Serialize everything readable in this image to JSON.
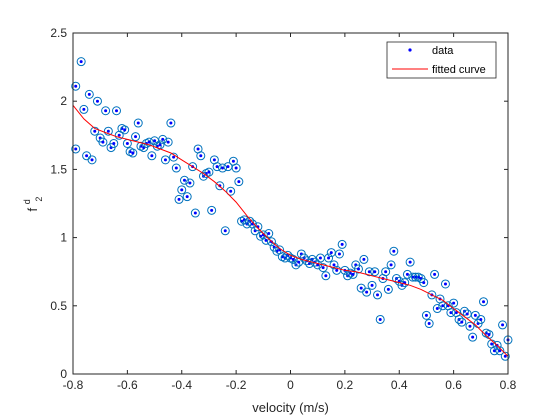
{
  "chart_data": {
    "type": "scatter",
    "title": "",
    "xlabel": "velocity (m/s)",
    "ylabel": "f",
    "ylabel_superscript": "d",
    "ylabel_subscript": "2",
    "xlim": [
      -0.8,
      0.8
    ],
    "ylim": [
      0,
      2.5
    ],
    "xticks": [
      -0.8,
      -0.6,
      -0.4,
      -0.2,
      0,
      0.2,
      0.4,
      0.6,
      0.8
    ],
    "xtick_labels": [
      "-0.8",
      "-0.6",
      "-0.4",
      "-0.2",
      "0",
      "0.2",
      "0.4",
      "0.6",
      "0.8"
    ],
    "yticks": [
      0,
      0.5,
      1,
      1.5,
      2,
      2.5
    ],
    "ytick_labels": [
      "0",
      "0.5",
      "1",
      "1.5",
      "2",
      "2.5"
    ],
    "grid": false,
    "legend_position": "top-right",
    "series": [
      {
        "name": "data",
        "kind": "scatter",
        "color": "#0000ff",
        "ring_color": "#0072bd",
        "points": [
          [
            -0.79,
            2.11
          ],
          [
            -0.77,
            2.29
          ],
          [
            -0.76,
            1.94
          ],
          [
            -0.79,
            1.65
          ],
          [
            -0.75,
            1.6
          ],
          [
            -0.74,
            2.05
          ],
          [
            -0.73,
            1.57
          ],
          [
            -0.72,
            1.78
          ],
          [
            -0.71,
            2.0
          ],
          [
            -0.7,
            1.73
          ],
          [
            -0.69,
            1.7
          ],
          [
            -0.68,
            1.93
          ],
          [
            -0.67,
            1.78
          ],
          [
            -0.66,
            1.66
          ],
          [
            -0.65,
            1.69
          ],
          [
            -0.64,
            1.93
          ],
          [
            -0.63,
            1.75
          ],
          [
            -0.62,
            1.8
          ],
          [
            -0.61,
            1.79
          ],
          [
            -0.6,
            1.69
          ],
          [
            -0.59,
            1.63
          ],
          [
            -0.58,
            1.62
          ],
          [
            -0.57,
            1.74
          ],
          [
            -0.56,
            1.84
          ],
          [
            -0.55,
            1.67
          ],
          [
            -0.54,
            1.66
          ],
          [
            -0.53,
            1.69
          ],
          [
            -0.52,
            1.7
          ],
          [
            -0.51,
            1.6
          ],
          [
            -0.5,
            1.71
          ],
          [
            -0.49,
            1.67
          ],
          [
            -0.48,
            1.68
          ],
          [
            -0.47,
            1.72
          ],
          [
            -0.46,
            1.57
          ],
          [
            -0.45,
            1.7
          ],
          [
            -0.44,
            1.84
          ],
          [
            -0.43,
            1.59
          ],
          [
            -0.42,
            1.51
          ],
          [
            -0.41,
            1.28
          ],
          [
            -0.4,
            1.35
          ],
          [
            -0.39,
            1.42
          ],
          [
            -0.38,
            1.3
          ],
          [
            -0.37,
            1.4
          ],
          [
            -0.36,
            1.52
          ],
          [
            -0.35,
            1.18
          ],
          [
            -0.34,
            1.65
          ],
          [
            -0.33,
            1.6
          ],
          [
            -0.32,
            1.45
          ],
          [
            -0.31,
            1.47
          ],
          [
            -0.3,
            1.48
          ],
          [
            -0.29,
            1.2
          ],
          [
            -0.28,
            1.57
          ],
          [
            -0.27,
            1.52
          ],
          [
            -0.26,
            1.38
          ],
          [
            -0.25,
            1.51
          ],
          [
            -0.24,
            1.05
          ],
          [
            -0.23,
            1.52
          ],
          [
            -0.22,
            1.34
          ],
          [
            -0.21,
            1.56
          ],
          [
            -0.2,
            1.51
          ],
          [
            -0.19,
            1.41
          ],
          [
            -0.18,
            1.12
          ],
          [
            -0.17,
            1.13
          ],
          [
            -0.16,
            1.1
          ],
          [
            -0.15,
            1.12
          ],
          [
            -0.14,
            1.1
          ],
          [
            -0.13,
            1.05
          ],
          [
            -0.12,
            1.08
          ],
          [
            -0.11,
            1.01
          ],
          [
            -0.1,
            1.02
          ],
          [
            -0.09,
            0.98
          ],
          [
            -0.08,
            1.03
          ],
          [
            -0.07,
            0.97
          ],
          [
            -0.06,
            0.93
          ],
          [
            -0.05,
            0.9
          ],
          [
            -0.04,
            0.91
          ],
          [
            -0.03,
            0.86
          ],
          [
            -0.02,
            0.85
          ],
          [
            -0.01,
            0.87
          ],
          [
            0.0,
            0.85
          ],
          [
            0.01,
            0.84
          ],
          [
            0.02,
            0.8
          ],
          [
            0.03,
            0.82
          ],
          [
            0.04,
            0.88
          ],
          [
            0.05,
            0.85
          ],
          [
            0.06,
            0.83
          ],
          [
            0.07,
            0.81
          ],
          [
            0.08,
            0.84
          ],
          [
            0.09,
            0.82
          ],
          [
            0.1,
            0.8
          ],
          [
            0.11,
            0.85
          ],
          [
            0.12,
            0.78
          ],
          [
            0.13,
            0.72
          ],
          [
            0.14,
            0.85
          ],
          [
            0.15,
            0.89
          ],
          [
            0.16,
            0.8
          ],
          [
            0.17,
            0.76
          ],
          [
            0.18,
            0.88
          ],
          [
            0.19,
            0.95
          ],
          [
            0.2,
            0.76
          ],
          [
            0.21,
            0.72
          ],
          [
            0.22,
            0.74
          ],
          [
            0.23,
            0.73
          ],
          [
            0.24,
            0.8
          ],
          [
            0.25,
            0.77
          ],
          [
            0.26,
            0.63
          ],
          [
            0.27,
            0.84
          ],
          [
            0.28,
            0.6
          ],
          [
            0.29,
            0.75
          ],
          [
            0.3,
            0.65
          ],
          [
            0.31,
            0.75
          ],
          [
            0.32,
            0.58
          ],
          [
            0.33,
            0.4
          ],
          [
            0.34,
            0.7
          ],
          [
            0.35,
            0.75
          ],
          [
            0.36,
            0.62
          ],
          [
            0.37,
            0.8
          ],
          [
            0.38,
            0.9
          ],
          [
            0.39,
            0.7
          ],
          [
            0.4,
            0.68
          ],
          [
            0.41,
            0.65
          ],
          [
            0.42,
            0.67
          ],
          [
            0.43,
            0.73
          ],
          [
            0.44,
            0.82
          ],
          [
            0.45,
            0.71
          ],
          [
            0.46,
            0.71
          ],
          [
            0.47,
            0.71
          ],
          [
            0.48,
            0.7
          ],
          [
            0.49,
            0.67
          ],
          [
            0.5,
            0.43
          ],
          [
            0.51,
            0.37
          ],
          [
            0.52,
            0.58
          ],
          [
            0.53,
            0.73
          ],
          [
            0.54,
            0.48
          ],
          [
            0.55,
            0.55
          ],
          [
            0.56,
            0.5
          ],
          [
            0.57,
            0.66
          ],
          [
            0.58,
            0.5
          ],
          [
            0.59,
            0.45
          ],
          [
            0.6,
            0.52
          ],
          [
            0.61,
            0.45
          ],
          [
            0.62,
            0.4
          ],
          [
            0.63,
            0.38
          ],
          [
            0.64,
            0.46
          ],
          [
            0.65,
            0.44
          ],
          [
            0.66,
            0.35
          ],
          [
            0.67,
            0.27
          ],
          [
            0.68,
            0.43
          ],
          [
            0.69,
            0.37
          ],
          [
            0.7,
            0.4
          ],
          [
            0.71,
            0.53
          ],
          [
            0.72,
            0.3
          ],
          [
            0.73,
            0.29
          ],
          [
            0.74,
            0.22
          ],
          [
            0.75,
            0.17
          ],
          [
            0.76,
            0.21
          ],
          [
            0.77,
            0.17
          ],
          [
            0.78,
            0.36
          ],
          [
            0.79,
            0.13
          ],
          [
            0.8,
            0.25
          ]
        ]
      },
      {
        "name": "fitted curve",
        "kind": "line",
        "color": "#ff0000",
        "points": [
          [
            -0.8,
            1.97
          ],
          [
            -0.76,
            1.87
          ],
          [
            -0.72,
            1.8
          ],
          [
            -0.68,
            1.77
          ],
          [
            -0.64,
            1.74
          ],
          [
            -0.6,
            1.72
          ],
          [
            -0.56,
            1.7
          ],
          [
            -0.52,
            1.68
          ],
          [
            -0.48,
            1.65
          ],
          [
            -0.44,
            1.62
          ],
          [
            -0.4,
            1.57
          ],
          [
            -0.36,
            1.52
          ],
          [
            -0.32,
            1.47
          ],
          [
            -0.28,
            1.41
          ],
          [
            -0.24,
            1.34
          ],
          [
            -0.2,
            1.26
          ],
          [
            -0.16,
            1.16
          ],
          [
            -0.12,
            1.07
          ],
          [
            -0.08,
            0.99
          ],
          [
            -0.04,
            0.92
          ],
          [
            0.0,
            0.87
          ],
          [
            0.04,
            0.84
          ],
          [
            0.08,
            0.82
          ],
          [
            0.12,
            0.8
          ],
          [
            0.16,
            0.78
          ],
          [
            0.2,
            0.76
          ],
          [
            0.24,
            0.75
          ],
          [
            0.28,
            0.73
          ],
          [
            0.32,
            0.71
          ],
          [
            0.36,
            0.69
          ],
          [
            0.4,
            0.67
          ],
          [
            0.44,
            0.65
          ],
          [
            0.48,
            0.62
          ],
          [
            0.52,
            0.58
          ],
          [
            0.56,
            0.54
          ],
          [
            0.6,
            0.48
          ],
          [
            0.64,
            0.42
          ],
          [
            0.68,
            0.36
          ],
          [
            0.72,
            0.28
          ],
          [
            0.76,
            0.21
          ],
          [
            0.8,
            0.13
          ]
        ]
      }
    ]
  }
}
